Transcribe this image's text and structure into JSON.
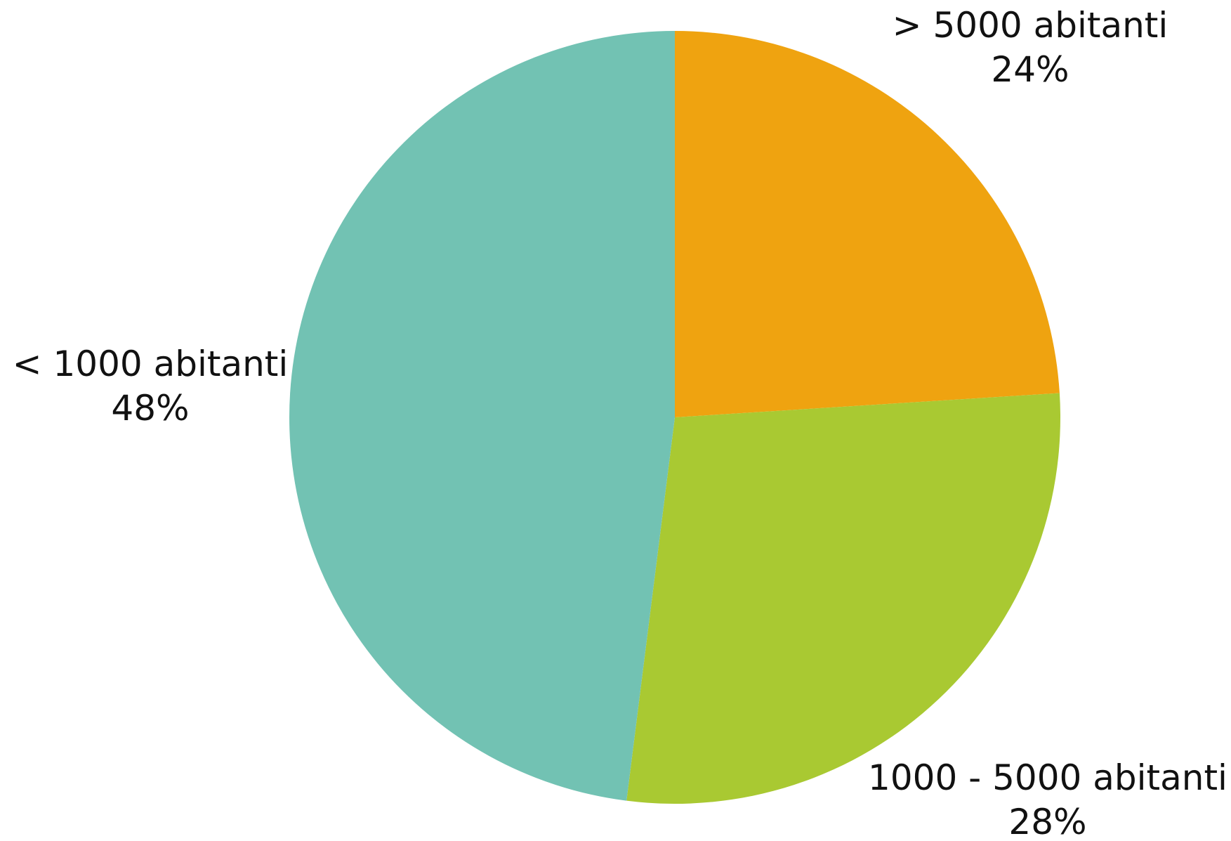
{
  "chart_data": {
    "type": "pie",
    "title": "",
    "slices": [
      {
        "label": "> 5000 abitanti",
        "value": 24,
        "display": "24%",
        "color": "#EFA310"
      },
      {
        "label": "1000 - 5000 abitanti",
        "value": 28,
        "display": "28%",
        "color": "#A9C932"
      },
      {
        "label": "< 1000 abitanti",
        "value": 48,
        "display": "48%",
        "color": "#72C2B3"
      }
    ],
    "start": "top",
    "direction": "clockwise",
    "legend": "none"
  }
}
